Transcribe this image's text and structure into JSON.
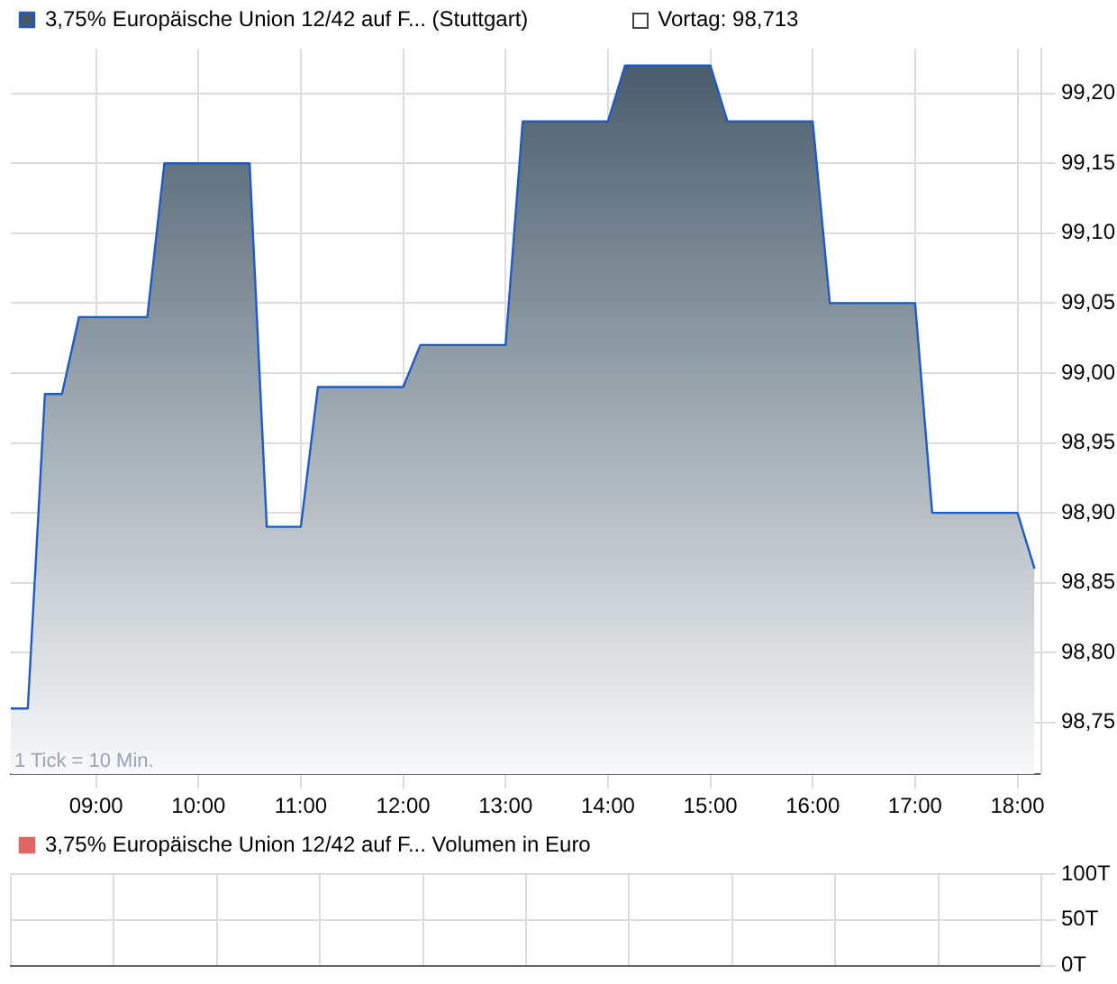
{
  "chart_data": [
    {
      "type": "area",
      "marker": "none",
      "line_style": "solid",
      "grid": true,
      "legend": "top left",
      "x": [
        8.167,
        8.333,
        8.5,
        8.667,
        8.833,
        9.5,
        9.667,
        10.5,
        10.667,
        11,
        11.167,
        12,
        12.167,
        13,
        13.167,
        14,
        14.167,
        15,
        15.167,
        16,
        16.167,
        17,
        17.167,
        18,
        18.167
      ],
      "series": [
        {
          "name": "3,75% Europäische Union 12/42 auf F... (Stuttgart)",
          "color": "#1f5bc6",
          "values": [
            98.76,
            98.76,
            98.985,
            98.985,
            99.04,
            99.04,
            99.15,
            99.15,
            98.89,
            98.89,
            98.99,
            98.99,
            99.02,
            99.02,
            99.18,
            99.18,
            99.22,
            99.22,
            99.18,
            99.18,
            99.05,
            99.05,
            98.9,
            98.9,
            98.86
          ]
        }
      ],
      "xlim": [
        8.167,
        18.233
      ],
      "ylim": [
        98.713,
        99.232
      ],
      "xticks": [
        {
          "value": 9,
          "label": "09:00"
        },
        {
          "value": 10,
          "label": "10:00"
        },
        {
          "value": 11,
          "label": "11:00"
        },
        {
          "value": 12,
          "label": "12:00"
        },
        {
          "value": 13,
          "label": "13:00"
        },
        {
          "value": 14,
          "label": "14:00"
        },
        {
          "value": 15,
          "label": "15:00"
        },
        {
          "value": 16,
          "label": "16:00"
        },
        {
          "value": 17,
          "label": "17:00"
        },
        {
          "value": 18,
          "label": "18:00"
        }
      ],
      "yticks": [
        {
          "value": 98.75,
          "label": "98,75"
        },
        {
          "value": 98.8,
          "label": "98,80"
        },
        {
          "value": 98.85,
          "label": "98,85"
        },
        {
          "value": 98.9,
          "label": "98,90"
        },
        {
          "value": 98.95,
          "label": "98,95"
        },
        {
          "value": 99,
          "label": "99,00"
        },
        {
          "value": 99.05,
          "label": "99,05"
        },
        {
          "value": 99.1,
          "label": "99,10"
        },
        {
          "value": 99.15,
          "label": "99,15"
        },
        {
          "value": 99.2,
          "label": "99,20"
        }
      ],
      "annotations": [
        "Vortag: 98,713",
        "1 Tick = 10 Min."
      ]
    },
    {
      "type": "bar",
      "grid": true,
      "legend": "top left",
      "tick_labels": "y",
      "categories": [
        null,
        null,
        null,
        null,
        null,
        null,
        null,
        null,
        null,
        null
      ],
      "series": [
        {
          "name": "3,75% Europäische Union 12/42 auf F... Volumen in Euro",
          "color": "#e06666",
          "values": [
            null,
            null,
            null,
            null,
            null,
            null,
            null,
            null,
            null,
            null
          ]
        }
      ],
      "ylim": [
        0,
        100
      ],
      "yticks": [
        {
          "value": 0,
          "label": "0T"
        },
        {
          "value": 50,
          "label": "50T"
        },
        {
          "value": 100,
          "label": "100T"
        }
      ]
    }
  ]
}
